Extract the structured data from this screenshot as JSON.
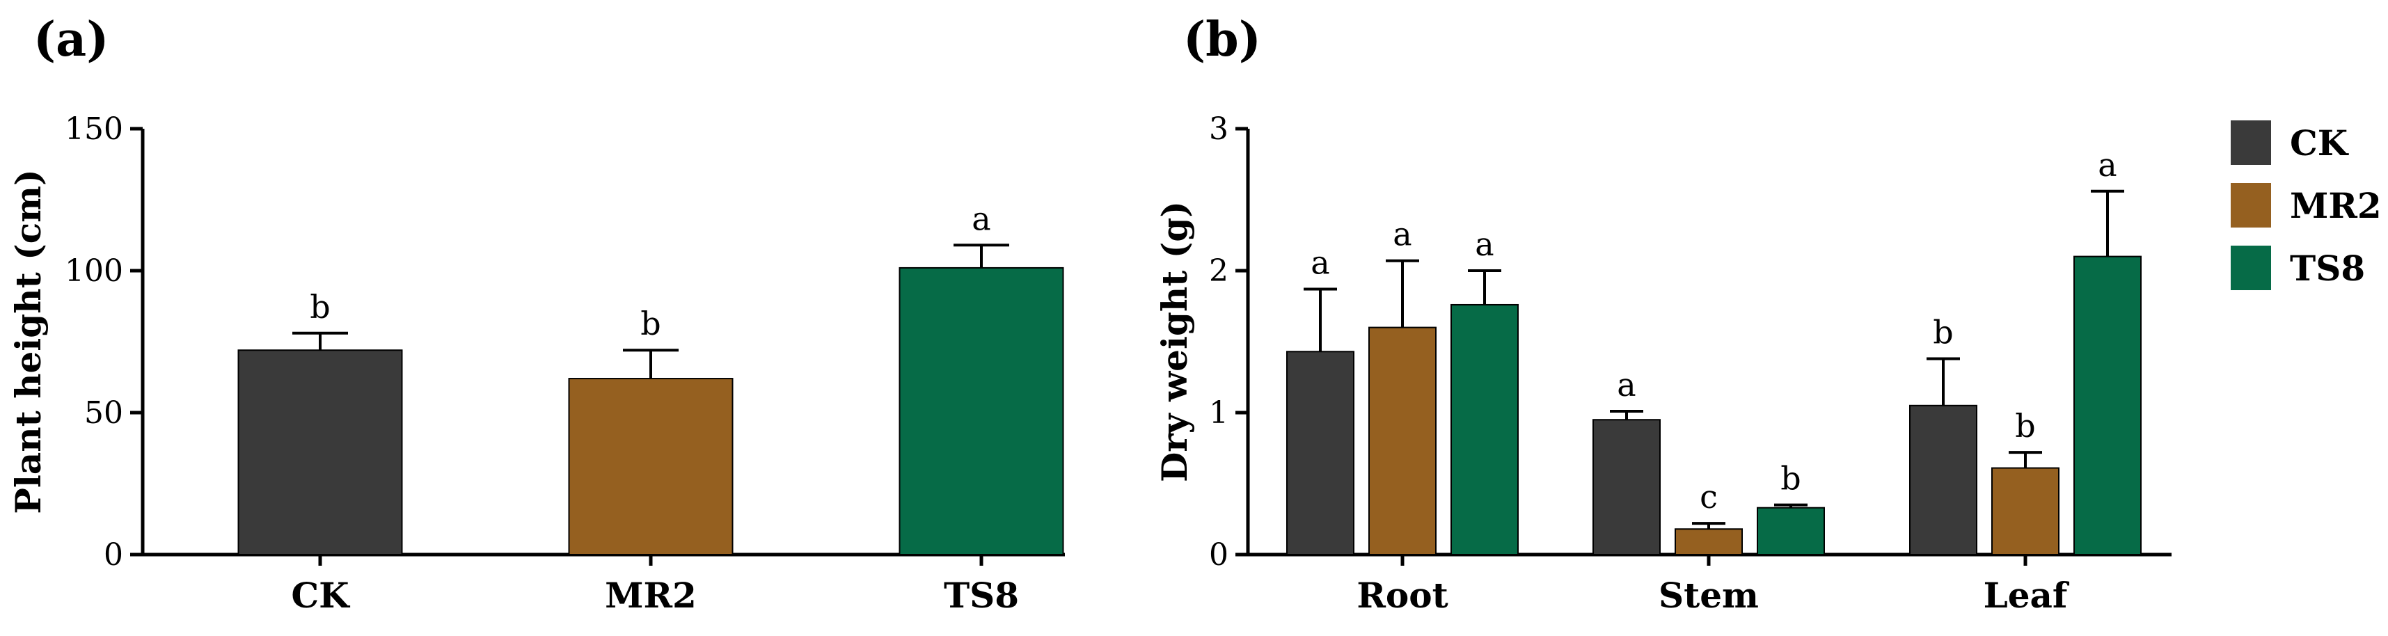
{
  "chart_data": [
    {
      "panel_label": "(a)",
      "type": "bar",
      "categories": [
        "CK",
        "MR2",
        "TS8"
      ],
      "values": [
        72,
        62,
        101
      ],
      "errors": [
        6,
        10,
        8
      ],
      "significance": [
        "b",
        "b",
        "a"
      ],
      "colors": [
        "#3a3a3a",
        "#956020",
        "#066b47"
      ],
      "ylabel": "Plant height (cm)",
      "xlabel": "",
      "ylim": [
        0,
        150
      ],
      "yticks": [
        0,
        50,
        100,
        150
      ],
      "ytick_labels": [
        "0",
        "50",
        "100",
        "150"
      ]
    },
    {
      "panel_label": "(b)",
      "type": "bar",
      "categories": [
        "Root",
        "Stem",
        "Leaf"
      ],
      "series": [
        {
          "name": "CK",
          "color": "#3a3a3a",
          "values": [
            1.43,
            0.95,
            1.05
          ],
          "errors": [
            0.44,
            0.06,
            0.33
          ],
          "significance": [
            "a",
            "a",
            "b"
          ]
        },
        {
          "name": "MR2",
          "color": "#956020",
          "values": [
            1.6,
            0.18,
            0.61
          ],
          "errors": [
            0.47,
            0.04,
            0.11
          ],
          "significance": [
            "a",
            "c",
            "b"
          ]
        },
        {
          "name": "TS8",
          "color": "#066b47",
          "values": [
            1.76,
            0.33,
            2.1
          ],
          "errors": [
            0.24,
            0.02,
            0.46
          ],
          "significance": [
            "a",
            "b",
            "a"
          ]
        }
      ],
      "ylabel": "Dry weight (g)",
      "xlabel": "",
      "ylim": [
        0,
        3
      ],
      "yticks": [
        0,
        1,
        2,
        3
      ],
      "ytick_labels": [
        "0",
        "1",
        "2",
        "3"
      ],
      "legend": {
        "entries": [
          "CK",
          "MR2",
          "TS8"
        ],
        "position": "right"
      }
    }
  ]
}
